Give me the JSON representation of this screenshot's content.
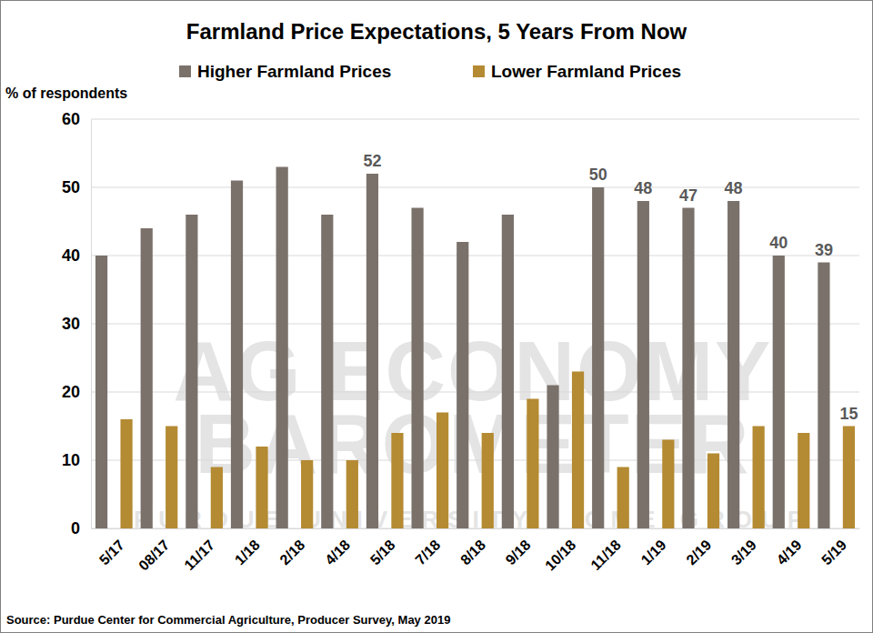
{
  "chart_data": {
    "type": "bar",
    "title": "Farmland Price Expectations, 5 Years From Now",
    "y_label": "% of respondents",
    "source": "Source: Purdue Center for Commercial Agriculture, Producer Survey, May 2019",
    "watermark": [
      "AG ECONOMY",
      "BAROMETER",
      "PURDUE UNIVERSITY · CME GROUP"
    ],
    "categories": [
      "5/17",
      "08/17",
      "11/17",
      "1/18",
      "2/18",
      "4/18",
      "5/18",
      "7/18",
      "8/18",
      "9/18",
      "10/18",
      "11/18",
      "1/19",
      "2/19",
      "3/19",
      "4/19",
      "5/19"
    ],
    "series": [
      {
        "name": "Higher Farmland Prices",
        "color": "#7a716a",
        "values": [
          40,
          44,
          46,
          51,
          53,
          46,
          52,
          47,
          42,
          46,
          21,
          50,
          48,
          47,
          48,
          40,
          39
        ],
        "value_labels": [
          null,
          null,
          null,
          null,
          null,
          null,
          "52",
          null,
          null,
          null,
          null,
          "50",
          "48",
          "47",
          "48",
          "40",
          "39"
        ]
      },
      {
        "name": "Lower Farmland Prices",
        "color": "#b48a32",
        "values": [
          16,
          15,
          9,
          12,
          10,
          10,
          14,
          17,
          14,
          19,
          23,
          9,
          13,
          11,
          15,
          14,
          15
        ],
        "value_labels": [
          null,
          null,
          null,
          null,
          null,
          null,
          null,
          null,
          null,
          null,
          null,
          null,
          null,
          null,
          null,
          null,
          "15"
        ]
      }
    ],
    "ylim": [
      0,
      60
    ],
    "yticks": [
      0,
      10,
      20,
      30,
      40,
      50,
      60
    ],
    "grid": true,
    "legend": "top",
    "data_labels": true
  }
}
